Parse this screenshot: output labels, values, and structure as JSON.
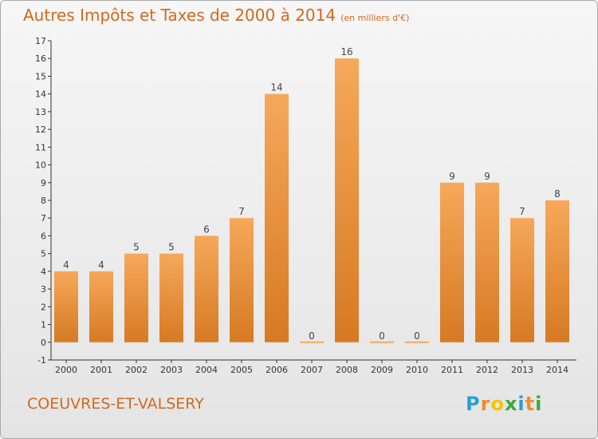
{
  "chart_data": {
    "type": "bar",
    "title": "Autres Impôts et Taxes de 2000 à 2014",
    "subtitle": "(en milliers d'€)",
    "categories": [
      "2000",
      "2001",
      "2002",
      "2003",
      "2004",
      "2005",
      "2006",
      "2007",
      "2008",
      "2009",
      "2010",
      "2011",
      "2012",
      "2013",
      "2014"
    ],
    "values": [
      4,
      4,
      5,
      5,
      6,
      7,
      14,
      0,
      16,
      0,
      0,
      9,
      9,
      7,
      8
    ],
    "data_labels": [
      "4",
      "4",
      "5",
      "5",
      "6",
      "7",
      "14",
      "0",
      "16",
      "0",
      "0",
      "9",
      "9",
      "7",
      "8"
    ],
    "ylim": [
      -1,
      17
    ],
    "yticks": [
      "-1",
      "0",
      "1",
      "2",
      "3",
      "4",
      "5",
      "6",
      "7",
      "8",
      "9",
      "10",
      "11",
      "12",
      "13",
      "14",
      "15",
      "16",
      "17"
    ],
    "xlabel": "",
    "ylabel": "",
    "grid": false,
    "legend": "none",
    "colors": {
      "bar_light": "#f6a85a",
      "bar_dark": "#d67a22",
      "text": "#d2691e",
      "axis": "#333333"
    }
  },
  "footer": {
    "town": "COEUVRES-ET-VALSERY"
  },
  "logo": {
    "text": "Proxiti",
    "letters": [
      "P",
      "r",
      "o",
      "x",
      "i",
      "t",
      "i"
    ],
    "colors": [
      "#2a9fd6",
      "#f28c28",
      "#f5c400",
      "#3caa3c",
      "#2a9fd6",
      "#f28c28",
      "#3caa3c"
    ]
  }
}
